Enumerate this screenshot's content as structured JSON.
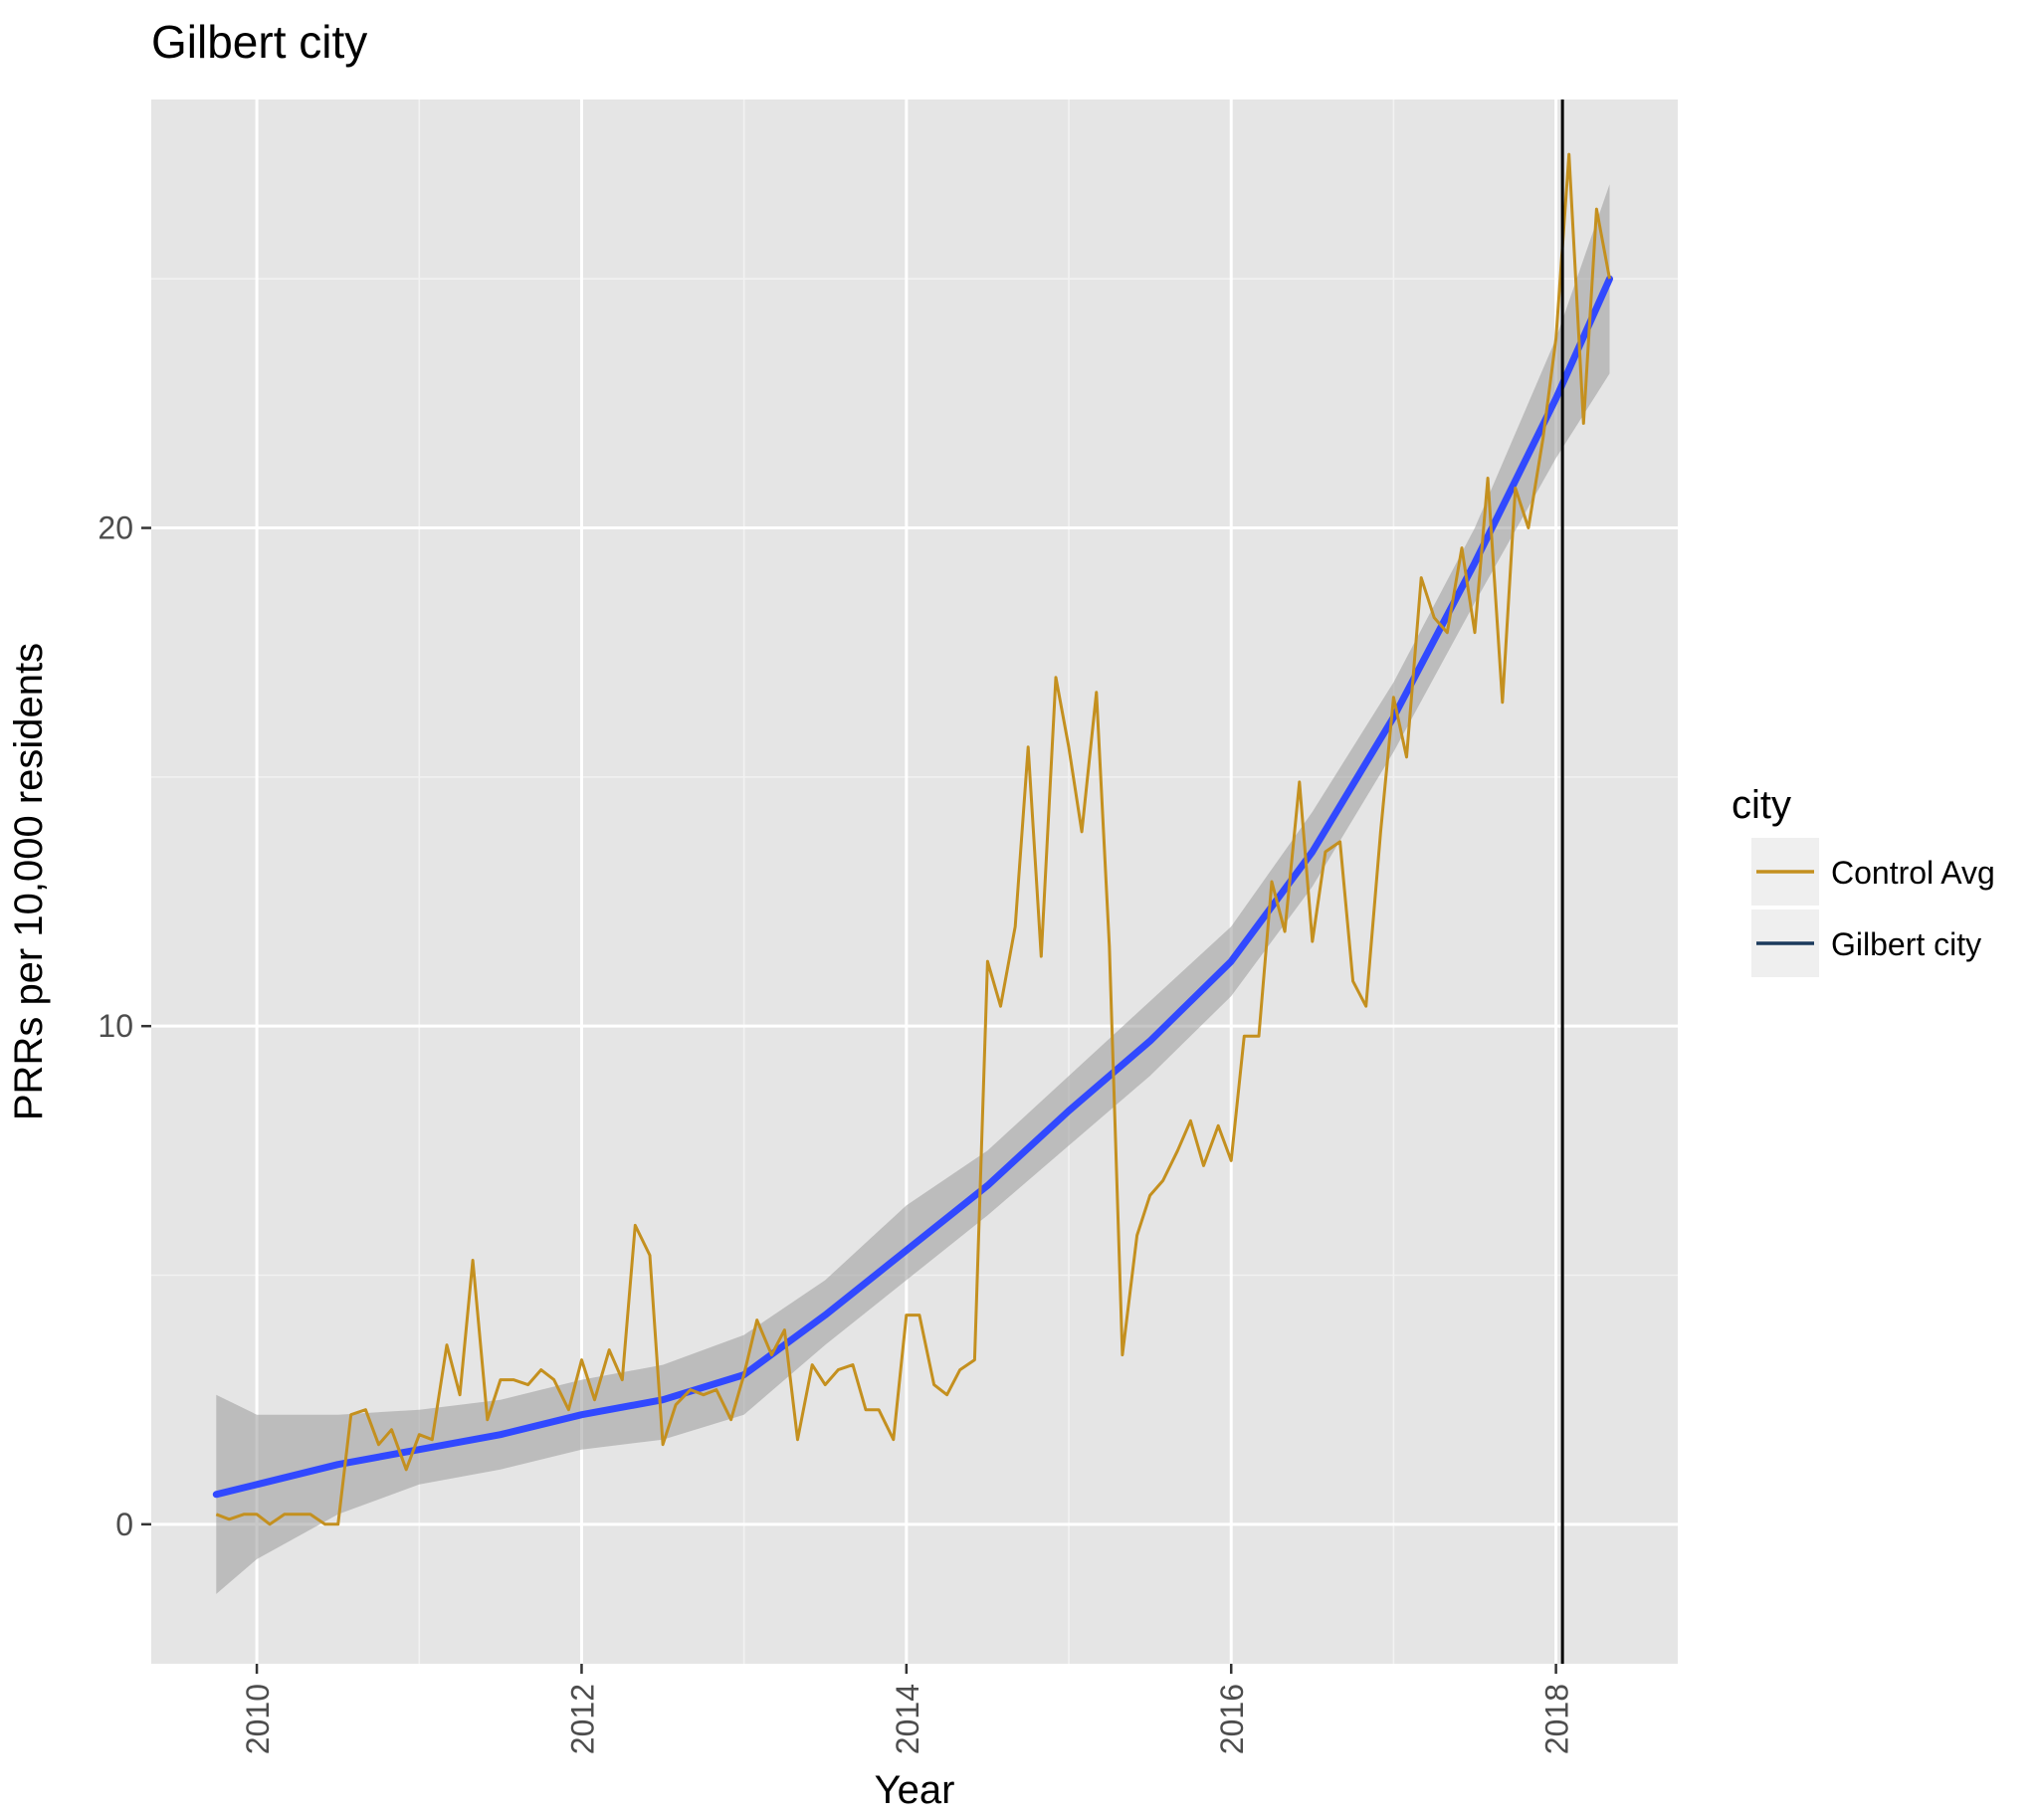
{
  "chart_data": {
    "type": "line",
    "title": "Gilbert city",
    "xlabel": "Year",
    "ylabel": "PRRs per 10,000 residents",
    "xlim": [
      2009.35,
      2018.75
    ],
    "ylim": [
      -2.8,
      28.6
    ],
    "x_ticks": [
      2010,
      2012,
      2014,
      2016,
      2018
    ],
    "x_tick_labels": [
      "2010",
      "2012",
      "2014",
      "2016",
      "2018"
    ],
    "y_ticks": [
      0,
      10,
      20
    ],
    "y_tick_labels": [
      "0",
      "10",
      "20"
    ],
    "grid": true,
    "legend": {
      "title": "city",
      "position": "right",
      "entries": [
        {
          "label": "Control Avg",
          "color": "#c4901f"
        },
        {
          "label": "Gilbert city",
          "color": "#1b3a5c"
        }
      ]
    },
    "vline": {
      "x": 2018.04,
      "color": "#000000"
    },
    "series": [
      {
        "name": "Control Avg",
        "color": "#c4901f",
        "x": [
          2009.75,
          2009.83,
          2009.92,
          2010.0,
          2010.08,
          2010.17,
          2010.25,
          2010.33,
          2010.42,
          2010.5,
          2010.58,
          2010.67,
          2010.75,
          2010.83,
          2010.92,
          2011.0,
          2011.08,
          2011.17,
          2011.25,
          2011.33,
          2011.42,
          2011.5,
          2011.58,
          2011.67,
          2011.75,
          2011.83,
          2011.92,
          2012.0,
          2012.08,
          2012.17,
          2012.25,
          2012.33,
          2012.42,
          2012.5,
          2012.58,
          2012.67,
          2012.75,
          2012.83,
          2012.92,
          2013.0,
          2013.08,
          2013.17,
          2013.25,
          2013.33,
          2013.42,
          2013.5,
          2013.58,
          2013.67,
          2013.75,
          2013.83,
          2013.92,
          2014.0,
          2014.08,
          2014.17,
          2014.25,
          2014.33,
          2014.42,
          2014.5,
          2014.58,
          2014.67,
          2014.75,
          2014.83,
          2014.92,
          2015.0,
          2015.08,
          2015.17,
          2015.25,
          2015.33,
          2015.42,
          2015.5,
          2015.58,
          2015.67,
          2015.75,
          2015.83,
          2015.92,
          2016.0,
          2016.08,
          2016.17,
          2016.25,
          2016.33,
          2016.42,
          2016.5,
          2016.58,
          2016.67,
          2016.75,
          2016.83,
          2016.92,
          2017.0,
          2017.08,
          2017.17,
          2017.25,
          2017.33,
          2017.42,
          2017.5,
          2017.58,
          2017.67,
          2017.75,
          2017.83,
          2017.92,
          2018.0,
          2018.08,
          2018.17,
          2018.25,
          2018.33
        ],
        "y": [
          0.2,
          0.1,
          0.2,
          0.2,
          0.0,
          0.2,
          0.2,
          0.2,
          0.0,
          0.0,
          2.2,
          2.3,
          1.6,
          1.9,
          1.1,
          1.8,
          1.7,
          3.6,
          2.6,
          5.3,
          2.1,
          2.9,
          2.9,
          2.8,
          3.1,
          2.9,
          2.3,
          3.3,
          2.5,
          3.5,
          2.9,
          6.0,
          5.4,
          1.6,
          2.4,
          2.7,
          2.6,
          2.7,
          2.1,
          3.0,
          4.1,
          3.4,
          3.9,
          1.7,
          3.2,
          2.8,
          3.1,
          3.2,
          2.3,
          2.3,
          1.7,
          4.2,
          4.2,
          2.8,
          2.6,
          3.1,
          3.3,
          11.3,
          10.4,
          12.0,
          15.6,
          11.4,
          17.0,
          15.6,
          13.9,
          16.7,
          11.6,
          3.4,
          5.8,
          6.6,
          6.9,
          7.5,
          8.1,
          7.2,
          8.0,
          7.3,
          9.8,
          9.8,
          12.9,
          11.9,
          14.9,
          11.7,
          13.5,
          13.7,
          10.9,
          10.4,
          13.9,
          16.6,
          15.4,
          19.0,
          18.2,
          17.9,
          19.6,
          17.9,
          21.0,
          16.5,
          20.8,
          20.0,
          21.8,
          23.8,
          27.5,
          22.1,
          26.4,
          25.0
        ]
      },
      {
        "name": "Gilbert city",
        "color": "#1b3a5c",
        "x": [],
        "y": []
      }
    ],
    "smooth": {
      "color": "#3149ff",
      "band_color": "#9a9a9a",
      "x": [
        2009.75,
        2010.0,
        2010.5,
        2011.0,
        2011.5,
        2012.0,
        2012.5,
        2013.0,
        2013.5,
        2014.0,
        2014.5,
        2015.0,
        2015.5,
        2016.0,
        2016.5,
        2017.0,
        2017.5,
        2018.0,
        2018.33
      ],
      "fit": [
        0.6,
        0.8,
        1.2,
        1.5,
        1.8,
        2.2,
        2.5,
        3.0,
        4.2,
        5.5,
        6.8,
        8.3,
        9.7,
        11.3,
        13.5,
        16.2,
        19.3,
        22.6,
        25.0
      ],
      "lower": [
        -1.4,
        -0.7,
        0.2,
        0.8,
        1.1,
        1.5,
        1.7,
        2.2,
        3.6,
        4.9,
        6.2,
        7.6,
        9.0,
        10.6,
        12.8,
        15.5,
        18.5,
        21.4,
        23.1
      ],
      "upper": [
        2.6,
        2.2,
        2.2,
        2.3,
        2.5,
        2.9,
        3.2,
        3.8,
        4.9,
        6.4,
        7.5,
        9.0,
        10.5,
        12.0,
        14.3,
        16.9,
        20.0,
        23.8,
        26.9
      ]
    }
  }
}
